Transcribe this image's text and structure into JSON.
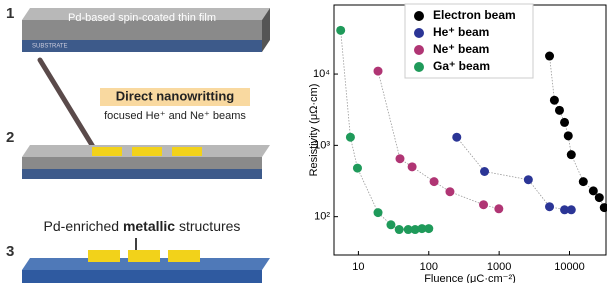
{
  "diagram": {
    "step1": {
      "number": "1",
      "film": "Pd-based spin-coated thin film",
      "substrate": "SUBSTRATE"
    },
    "step2": {
      "number": "2",
      "title": "Direct nanowritting",
      "subtitle": "focused He⁺ and Ne⁺ beams"
    },
    "step3": {
      "number": "3",
      "text_a": "Pd-enriched ",
      "text_bold": "metallic",
      "text_b": " structures"
    }
  },
  "chart_data": {
    "type": "scatter",
    "xlabel": "Fluence (μC·cm⁻²)",
    "ylabel": "Resistivity (μΩ·cm)",
    "xscale": "log",
    "yscale": "log",
    "legend": "upper center",
    "xlim": [
      4.5,
      33000
    ],
    "ylim": [
      29,
      93000
    ],
    "xticks": [
      10,
      100,
      1000,
      10000
    ],
    "yticks": [
      {
        "value": 100,
        "label": "10²"
      },
      {
        "value": 1000,
        "label": "10³"
      },
      {
        "value": 10000,
        "label": "10⁴"
      }
    ],
    "series": [
      {
        "name": "Electron beam",
        "color": "#000000",
        "x": [
          5200,
          6100,
          7200,
          8500,
          9600,
          10600,
          15700,
          21800,
          26500,
          31200
        ],
        "values": [
          17900,
          4300,
          3100,
          2100,
          1360,
          740,
          310,
          230,
          185,
          134
        ]
      },
      {
        "name": "He⁺ beam",
        "color": "#2b3596",
        "x": [
          250,
          620,
          2600,
          5200,
          8500,
          10600
        ],
        "values": [
          1300,
          430,
          330,
          138,
          125,
          125
        ]
      },
      {
        "name": "Ne⁺ beam",
        "color": "#b03574",
        "x": [
          19,
          39,
          58,
          119,
          200,
          600,
          990
        ],
        "values": [
          11000,
          650,
          500,
          310,
          224,
          147,
          129
        ]
      },
      {
        "name": "Ga⁺ beam",
        "color": "#1f9a5a",
        "x": [
          5.6,
          7.7,
          9.7,
          19,
          29,
          38,
          51,
          64,
          80,
          100
        ],
        "values": [
          41000,
          1300,
          480,
          114,
          77,
          66,
          66,
          66,
          68,
          68
        ]
      }
    ]
  }
}
